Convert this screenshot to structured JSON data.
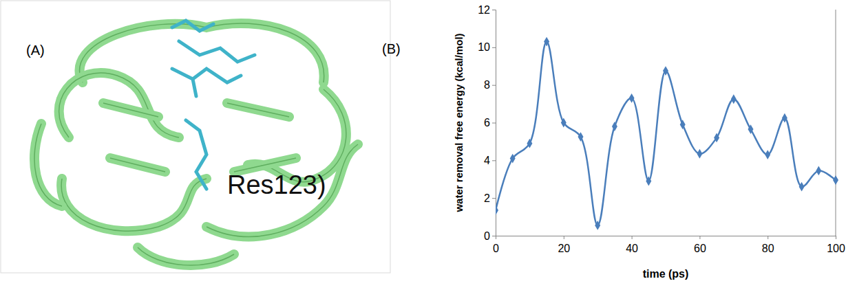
{
  "panel_a": {
    "label": "(A)",
    "annotation": "Res123)"
  },
  "chart_data": {
    "type": "line",
    "panel_label": "(B)",
    "x_label": "time (ps)",
    "y_label": "water removal free energy (kcal/mol)",
    "x": [
      0,
      5,
      10,
      15,
      20,
      25,
      30,
      35,
      40,
      45,
      50,
      55,
      60,
      65,
      70,
      75,
      80,
      85,
      90,
      95,
      100
    ],
    "values": [
      1.35,
      4.1,
      4.9,
      10.3,
      6.0,
      5.25,
      0.55,
      5.8,
      7.3,
      2.9,
      8.75,
      5.9,
      4.35,
      5.2,
      7.25,
      5.65,
      4.3,
      6.25,
      2.6,
      3.45,
      2.95
    ],
    "color": "#4a7ebb",
    "marker": "diamond",
    "line_style": "smooth",
    "xlim": [
      0,
      100
    ],
    "xticks": [
      0,
      20,
      40,
      60,
      80,
      100
    ],
    "ylim": [
      0,
      12
    ],
    "yticks": [
      0,
      2,
      4,
      6,
      8,
      10,
      12
    ],
    "grid": false
  }
}
